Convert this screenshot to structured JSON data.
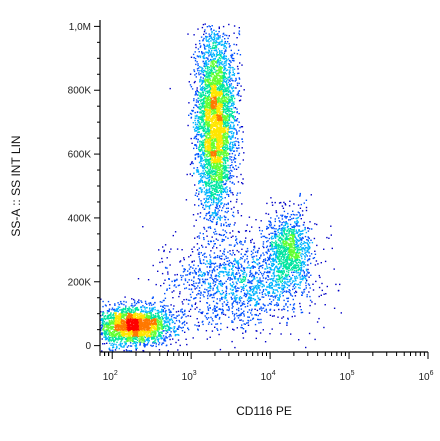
{
  "chart_data": {
    "type": "scatter",
    "xlabel": "CD116 PE",
    "ylabel": "SS-A :: SS INT LIN",
    "x_scale": "log",
    "xlim": [
      70,
      1000000
    ],
    "ylim": [
      -20000,
      1020000
    ],
    "x_ticks": [
      {
        "value": 100,
        "base": "10",
        "exp": "2"
      },
      {
        "value": 1000,
        "base": "10",
        "exp": "3"
      },
      {
        "value": 10000,
        "base": "10",
        "exp": "4"
      },
      {
        "value": 100000,
        "base": "10",
        "exp": "5"
      },
      {
        "value": 1000000,
        "base": "10",
        "exp": "6"
      }
    ],
    "y_ticks": [
      {
        "value": 0,
        "label": "0"
      },
      {
        "value": 200000,
        "label": "200K"
      },
      {
        "value": 400000,
        "label": "400K"
      },
      {
        "value": 600000,
        "label": "600K"
      },
      {
        "value": 800000,
        "label": "800K"
      },
      {
        "value": 1000000,
        "label": "1,0M"
      }
    ],
    "populations": [
      {
        "x_center": 180,
        "x_spread_log": 0.25,
        "y_center": 65000,
        "y_spread": 30000,
        "count": 2600
      },
      {
        "x_center": 2000,
        "x_spread_log": 0.12,
        "y_center": 700000,
        "y_spread": 140000,
        "count": 4200
      },
      {
        "x_center": 17000,
        "x_spread_log": 0.14,
        "y_center": 300000,
        "y_spread": 60000,
        "count": 1100
      },
      {
        "x_center": 4000,
        "x_spread_log": 0.45,
        "y_center": 200000,
        "y_spread": 70000,
        "count": 1500
      }
    ],
    "density_colors": [
      "#0000c8",
      "#0050ff",
      "#00b4ff",
      "#00e6a0",
      "#64ff32",
      "#ffe600",
      "#ff7800",
      "#ff0000"
    ],
    "grid": false
  }
}
